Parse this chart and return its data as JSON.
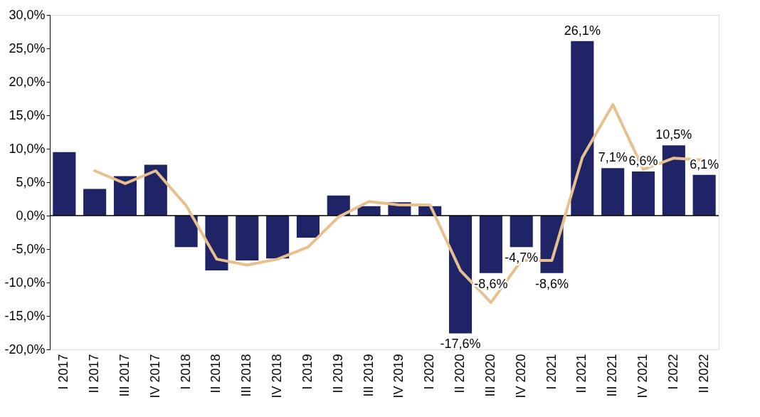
{
  "chart_data": {
    "type": "bar",
    "categories": [
      "I 2017",
      "II 2017",
      "III 2017",
      "IV 2017",
      "I 2018",
      "II 2018",
      "III 2018",
      "IV 2018",
      "I 2019",
      "II 2019",
      "III 2019",
      "IV 2019",
      "I 2020",
      "II 2020",
      "III 2020",
      "IV 2020",
      "I 2021",
      "II 2021",
      "III 2021",
      "IV 2021",
      "I 2022",
      "II 2022"
    ],
    "series": [
      {
        "color": "#1f2466",
        "values": [
          9.5,
          4.0,
          5.9,
          7.6,
          -4.7,
          -8.2,
          -6.7,
          -6.4,
          -3.3,
          3.0,
          1.4,
          2.0,
          1.4,
          -17.6,
          -8.6,
          -4.7,
          -8.6,
          26.1,
          7.1,
          6.6,
          10.5,
          6.1
        ],
        "value_labels": [
          null,
          null,
          null,
          null,
          null,
          null,
          null,
          null,
          null,
          null,
          null,
          null,
          null,
          "-17,6%",
          "-8,6%",
          "-4,7%",
          "-8,6%",
          "26,1%",
          "7,1%",
          "6,6%",
          "10,5%",
          "6,1%"
        ]
      },
      {
        "type": "line",
        "color": "#e8c08e",
        "values": [
          null,
          6.7,
          4.8,
          6.7,
          1.5,
          -6.5,
          -7.4,
          -6.5,
          -4.7,
          -0.2,
          2.1,
          1.6,
          1.6,
          -8.2,
          -13.0,
          -6.7,
          -6.7,
          8.7,
          16.6,
          6.9,
          8.6,
          8.3
        ]
      }
    ],
    "ylim": [
      -20,
      30
    ],
    "yticks": [
      {
        "value": -20,
        "label": "-20,0%"
      },
      {
        "value": -15,
        "label": "-15,0%"
      },
      {
        "value": -10,
        "label": "-10,0%"
      },
      {
        "value": -5,
        "label": "-5,0%"
      },
      {
        "value": 0,
        "label": "0,0%"
      },
      {
        "value": 5,
        "label": "5,0%"
      },
      {
        "value": 10,
        "label": "10,0%"
      },
      {
        "value": 15,
        "label": "15,0%"
      },
      {
        "value": 20,
        "label": "20,0%"
      },
      {
        "value": 25,
        "label": "25,0%"
      },
      {
        "value": 30,
        "label": "30,0%"
      }
    ],
    "ref_lines": [
      {
        "axis": "y",
        "value": 0,
        "color": "#000000"
      }
    ],
    "grid": false,
    "marker": "none",
    "line_style": "solid"
  }
}
